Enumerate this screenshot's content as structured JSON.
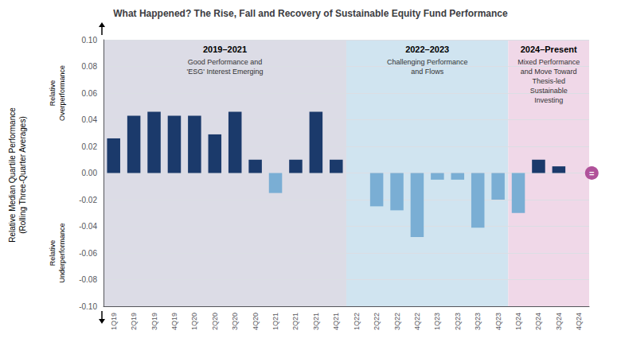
{
  "chart_data": {
    "type": "bar",
    "title": "What Happened? The Rise, Fall and Recovery of Sustainable Equity Fund Performance",
    "categories": [
      "1Q19",
      "2Q19",
      "3Q19",
      "4Q19",
      "1Q20",
      "2Q20",
      "3Q20",
      "4Q20",
      "1Q21",
      "2Q21",
      "3Q21",
      "4Q21",
      "1Q22",
      "2Q22",
      "3Q22",
      "4Q22",
      "1Q23",
      "2Q23",
      "3Q23",
      "4Q23",
      "1Q24",
      "2Q24",
      "3Q24",
      "4Q24"
    ],
    "values": [
      0.026,
      0.043,
      0.046,
      0.043,
      0.043,
      0.029,
      0.046,
      0.01,
      -0.015,
      0.01,
      0.046,
      0.01,
      0.0,
      -0.025,
      -0.028,
      -0.048,
      -0.005,
      -0.005,
      -0.041,
      -0.02,
      -0.03,
      0.01,
      0.005,
      0.0
    ],
    "colors": [
      "#1B3A6B",
      "#1B3A6B",
      "#1B3A6B",
      "#1B3A6B",
      "#1B3A6B",
      "#1B3A6B",
      "#1B3A6B",
      "#1B3A6B",
      "#7aaed4",
      "#1B3A6B",
      "#1B3A6B",
      "#1B3A6B",
      "#1B3A6B",
      "#7aaed4",
      "#7aaed4",
      "#7aaed4",
      "#7aaed4",
      "#7aaed4",
      "#7aaed4",
      "#7aaed4",
      "#7aaed4",
      "#1B3A6B",
      "#1B3A6B",
      "#1B3A6B"
    ],
    "ylabel": "Relative Median Quartile Performance\n(Rolling Three-Quarter Averages)",
    "ylim": [
      -0.1,
      0.1
    ],
    "yticks": [
      {
        "value": -0.1,
        "label": "-0.10"
      },
      {
        "value": -0.08,
        "label": "-0.08"
      },
      {
        "value": -0.06,
        "label": "-0.06"
      },
      {
        "value": -0.04,
        "label": "-0.04"
      },
      {
        "value": -0.02,
        "label": "-0.02"
      },
      {
        "value": 0,
        "label": "0.00"
      },
      {
        "value": 0.02,
        "label": "0.02"
      },
      {
        "value": 0.04,
        "label": "0.04"
      },
      {
        "value": 0.06,
        "label": "0.06"
      },
      {
        "value": 0.08,
        "label": "0.08"
      },
      {
        "value": 0.1,
        "label": "0.10"
      }
    ],
    "grid": true,
    "annotations": [
      {
        "text": "2019–2021",
        "subtext": "Good Performance and\n'ESG' Interest Emerging",
        "from": "1Q19",
        "to": "4Q21",
        "color": "#dcdce6"
      },
      {
        "text": "2022–2023",
        "subtext": "Challenging Performance\nand Flows",
        "from": "1Q22",
        "to": "4Q23",
        "color": "#d0e4f0"
      },
      {
        "text": "2024–Present",
        "subtext": "Mixed Performance\nand Move Toward\nThesis-led\nSustainable\nInvesting",
        "from": "1Q24",
        "to": "4Q24",
        "color": "#f0d8e8"
      },
      {
        "text": "Relative\nOverperformance",
        "direction": "up"
      },
      {
        "text": "Relative\nUnderperformance",
        "direction": "down"
      },
      {
        "text": "=",
        "color": "#b0529a",
        "category": "4Q24"
      }
    ]
  }
}
